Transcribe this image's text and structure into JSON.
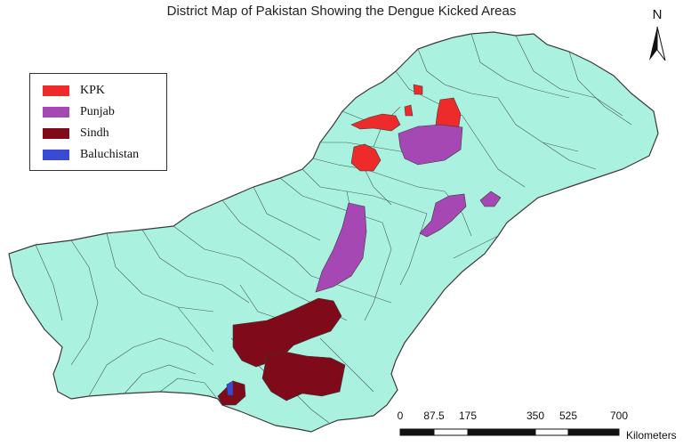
{
  "title": "District Map of Pakistan Showing the Dengue Kicked Areas",
  "legend": [
    {
      "label": "KPK",
      "color": "#ee2b2b"
    },
    {
      "label": "Punjab",
      "color": "#a548b4"
    },
    {
      "label": "Sindh",
      "color": "#7e0a1a"
    },
    {
      "label": "Baluchistan",
      "color": "#3b4ad3"
    }
  ],
  "north_label": "N",
  "scale": {
    "ticks": [
      "0",
      "87.5",
      "175",
      "350",
      "525",
      "700"
    ],
    "units": "Kilometers"
  },
  "colors": {
    "land": "#aaf2df",
    "border": "#3a3a3a"
  }
}
